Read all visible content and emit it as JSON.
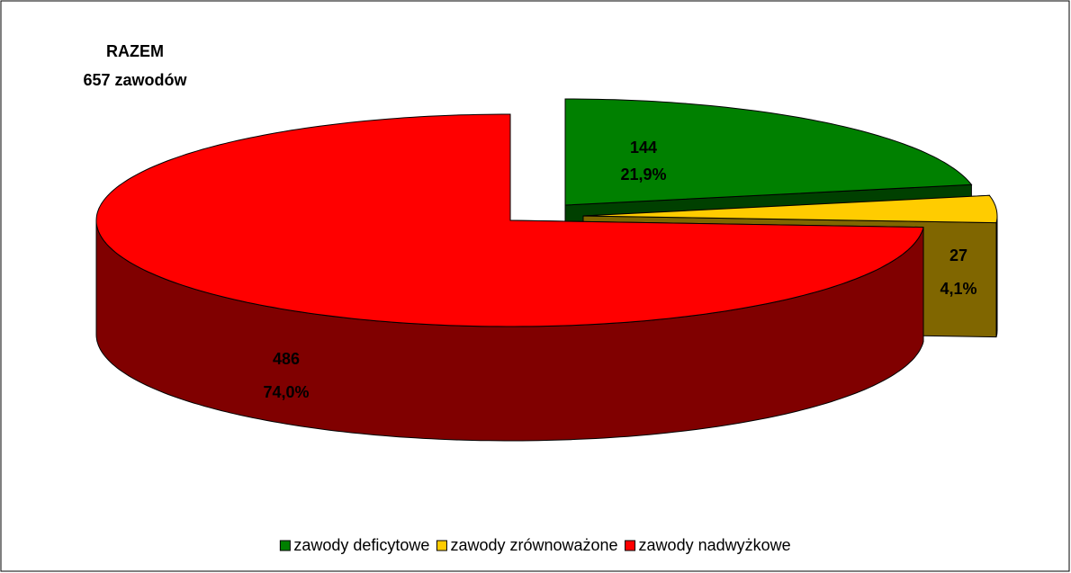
{
  "chart_data": {
    "type": "pie3d",
    "title": "RAZEM",
    "subtitle": "657 zawodów",
    "categories": [
      "zawody deficytowe",
      "zawody zrównoważone",
      "zawody nadwyżkowe"
    ],
    "values": [
      144,
      27,
      486
    ],
    "percentages": [
      21.9,
      4.1,
      74.0
    ],
    "percentage_labels": [
      "21,9%",
      "4,1%",
      "74,0%"
    ],
    "colors": [
      "#008000",
      "#ffcc00",
      "#ff0000"
    ],
    "legend": "bottom"
  }
}
